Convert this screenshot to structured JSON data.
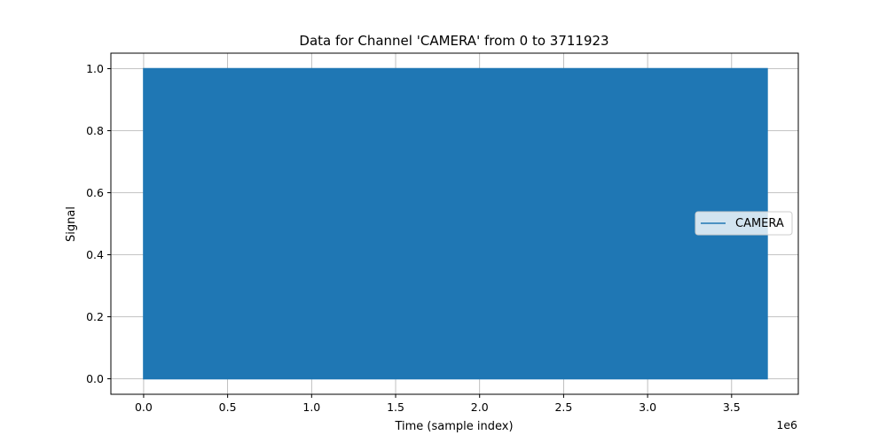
{
  "chart_data": {
    "type": "line",
    "title": "Data for Channel 'CAMERA' from 0 to 3711923",
    "xlabel": "Time (sample index)",
    "ylabel": "Signal",
    "x_offset_label": "1e6",
    "xlim": [
      -195000,
      3897000
    ],
    "ylim": [
      -0.05,
      1.05
    ],
    "x_ticks": [
      0,
      0.5,
      1.0,
      1.5,
      2.0,
      2.5,
      3.0,
      3.5
    ],
    "x_tick_labels": [
      "0.0",
      "0.5",
      "1.0",
      "1.5",
      "2.0",
      "2.5",
      "3.0",
      "3.5"
    ],
    "y_ticks": [
      0.0,
      0.2,
      0.4,
      0.6,
      0.8,
      1.0
    ],
    "y_tick_labels": [
      "0.0",
      "0.2",
      "0.4",
      "0.6",
      "0.8",
      "1.0"
    ],
    "grid": true,
    "legend_position": "center-right",
    "series": [
      {
        "name": "CAMERA",
        "color": "#1f77b4",
        "x_range": [
          0,
          3711923
        ],
        "y_range": [
          0,
          1
        ]
      }
    ]
  }
}
